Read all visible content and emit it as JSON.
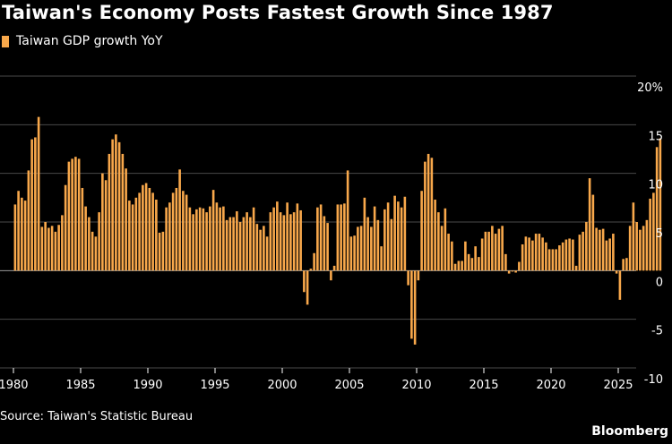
{
  "chart_data": {
    "type": "bar",
    "title": "Taiwan's Economy Posts Fastest Growth Since 1987",
    "legend_position": "top-left",
    "grid": true,
    "colors": {
      "bar": "#f8a84b",
      "background": "#000000",
      "grid": "#4a4a4a",
      "text": "#ffffff"
    },
    "series": [
      {
        "name": "Taiwan GDP growth YoY",
        "x_start": 1980,
        "x_step": 0.25,
        "values": [
          6.8,
          8.2,
          7.5,
          7.2,
          10.3,
          13.5,
          13.7,
          15.8,
          4.5,
          5.0,
          4.4,
          4.6,
          4.0,
          4.7,
          5.7,
          8.8,
          11.2,
          11.5,
          11.7,
          11.5,
          8.5,
          6.6,
          5.5,
          4.0,
          3.5,
          6.0,
          10.0,
          9.3,
          12.0,
          13.5,
          14.0,
          13.2,
          12.0,
          10.5,
          7.2,
          6.8,
          7.5,
          8.0,
          8.8,
          9.0,
          8.5,
          8.0,
          7.3,
          3.9,
          4.0,
          6.5,
          7.0,
          8.0,
          8.5,
          10.4,
          8.2,
          7.8,
          6.5,
          5.8,
          6.3,
          6.5,
          6.4,
          6.0,
          6.6,
          8.3,
          7.0,
          6.5,
          6.6,
          5.2,
          5.5,
          5.5,
          6.1,
          5.0,
          5.5,
          6.0,
          5.5,
          6.5,
          4.8,
          4.2,
          4.6,
          3.5,
          6.0,
          6.5,
          7.1,
          6.0,
          5.7,
          7.0,
          5.8,
          6.0,
          6.9,
          6.2,
          -2.2,
          -3.5,
          0.2,
          1.8,
          6.5,
          6.8,
          5.6,
          4.9,
          -1.0,
          0.5,
          6.8,
          6.8,
          6.9,
          10.3,
          3.5,
          3.6,
          4.5,
          4.6,
          7.5,
          5.5,
          4.5,
          6.6,
          5.2,
          2.5,
          6.3,
          7.0,
          5.3,
          7.7,
          7.1,
          6.5,
          7.6,
          -1.5,
          -7.0,
          -7.6,
          -1.0,
          8.2,
          11.2,
          12.0,
          11.6,
          7.3,
          6.0,
          4.6,
          6.4,
          3.8,
          3.0,
          0.7,
          1.0,
          1.0,
          3.0,
          1.7,
          1.3,
          2.5,
          1.4,
          3.3,
          4.0,
          4.0,
          4.6,
          3.8,
          4.3,
          4.6,
          1.7,
          -0.3,
          -0.1,
          -0.2,
          0.9,
          2.7,
          3.5,
          3.4,
          3.1,
          3.8,
          3.8,
          3.4,
          2.9,
          2.2,
          2.2,
          2.2,
          2.6,
          2.9,
          3.2,
          3.3,
          3.2,
          0.5,
          3.7,
          4.0,
          5.0,
          9.5,
          7.8,
          4.4,
          4.2,
          4.3,
          3.1,
          3.3,
          3.8,
          -0.3,
          -3.0,
          1.2,
          1.3,
          4.6,
          7.0,
          5.0,
          4.2,
          4.6,
          5.2,
          7.4,
          8.0,
          12.7,
          13.6
        ]
      }
    ],
    "ylim": [
      -10,
      20
    ],
    "yticks": [
      "20%",
      "15",
      "10",
      "5",
      "0",
      "-5",
      "-10"
    ],
    "ytick_values": [
      20,
      15,
      10,
      5,
      0,
      -5,
      -10
    ],
    "xticks": [
      "1980",
      "1985",
      "1990",
      "1995",
      "2000",
      "2005",
      "2010",
      "2015",
      "2020",
      "2025"
    ],
    "xtick_values": [
      1980,
      1985,
      1990,
      1995,
      2000,
      2005,
      2010,
      2015,
      2020,
      2025
    ],
    "xlim": [
      1980,
      2027.2
    ]
  },
  "footer": {
    "source": "Source: Taiwan's Statistic Bureau",
    "brand": "Bloomberg"
  }
}
